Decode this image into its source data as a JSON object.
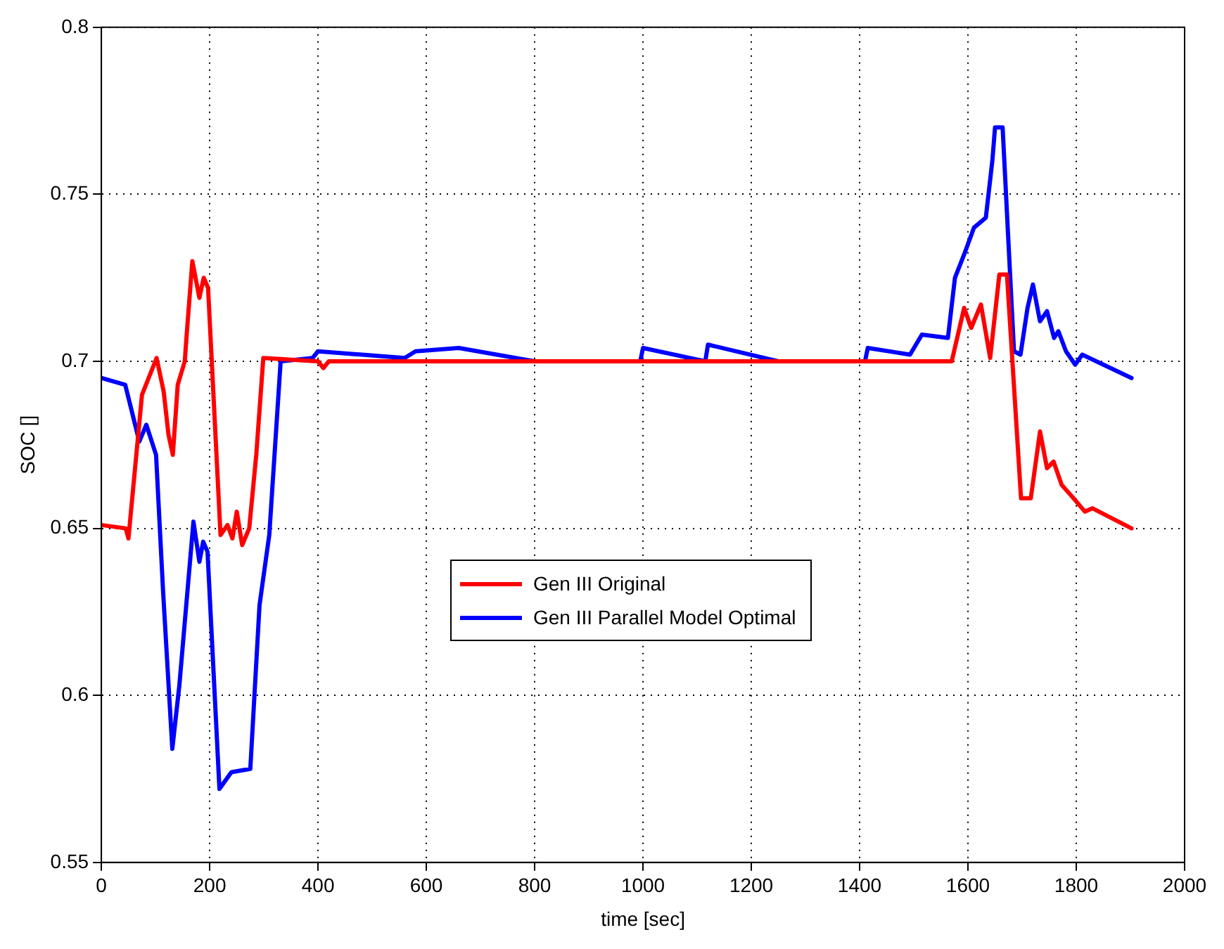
{
  "chart_data": {
    "type": "line",
    "xlabel": "time [sec]",
    "ylabel": "SOC []",
    "xlim": [
      0,
      2000
    ],
    "xticks": [
      0,
      200,
      400,
      600,
      800,
      1000,
      1200,
      1400,
      1600,
      1800,
      2000
    ],
    "ylim": [
      0.55,
      0.8
    ],
    "yticks": [
      0.55,
      0.6,
      0.65,
      0.7,
      0.75,
      0.8
    ],
    "grid": true,
    "legend": "center",
    "marker": "none",
    "line_style": "solid",
    "series": [
      {
        "name": "Gen III Original",
        "color": "#ff0000",
        "x": [
          0,
          45,
          50,
          75,
          102,
          115,
          124,
          132,
          141,
          154,
          158,
          168,
          181,
          189,
          197,
          220,
          233,
          242,
          250,
          260,
          273,
          286,
          299,
          400,
          410,
          420,
          1000,
          1570,
          1593,
          1606,
          1624,
          1641,
          1658,
          1672,
          1698,
          1716,
          1733,
          1746,
          1758,
          1773,
          1795,
          1816,
          1830,
          1902
        ],
        "values": [
          0.651,
          0.65,
          0.647,
          0.69,
          0.701,
          0.691,
          0.678,
          0.672,
          0.693,
          0.7,
          0.709,
          0.73,
          0.719,
          0.725,
          0.722,
          0.648,
          0.651,
          0.647,
          0.655,
          0.645,
          0.65,
          0.672,
          0.701,
          0.7,
          0.698,
          0.7,
          0.7,
          0.7,
          0.716,
          0.71,
          0.717,
          0.701,
          0.726,
          0.726,
          0.659,
          0.659,
          0.679,
          0.668,
          0.67,
          0.663,
          0.659,
          0.655,
          0.656,
          0.65
        ]
      },
      {
        "name": "Gen III Parallel Model Optimal",
        "color": "#0000ff",
        "x": [
          0,
          44,
          70,
          83,
          101,
          114,
          131,
          144,
          153,
          170,
          181,
          188,
          196,
          218,
          240,
          275,
          292,
          310,
          331,
          390,
          400,
          560,
          580,
          660,
          800,
          995,
          1000,
          1115,
          1120,
          1250,
          1410,
          1415,
          1493,
          1515,
          1563,
          1576,
          1593,
          1611,
          1633,
          1645,
          1650,
          1664,
          1685,
          1697,
          1710,
          1720,
          1733,
          1746,
          1759,
          1767,
          1781,
          1798,
          1811,
          1902
        ],
        "values": [
          0.695,
          0.693,
          0.676,
          0.681,
          0.672,
          0.631,
          0.584,
          0.603,
          0.62,
          0.652,
          0.64,
          0.646,
          0.643,
          0.572,
          0.577,
          0.578,
          0.627,
          0.648,
          0.7,
          0.701,
          0.703,
          0.701,
          0.703,
          0.704,
          0.7,
          0.7,
          0.704,
          0.7,
          0.705,
          0.7,
          0.7,
          0.704,
          0.702,
          0.708,
          0.707,
          0.725,
          0.732,
          0.74,
          0.743,
          0.76,
          0.77,
          0.77,
          0.703,
          0.702,
          0.716,
          0.723,
          0.712,
          0.715,
          0.707,
          0.709,
          0.703,
          0.699,
          0.702,
          0.695
        ]
      }
    ]
  }
}
